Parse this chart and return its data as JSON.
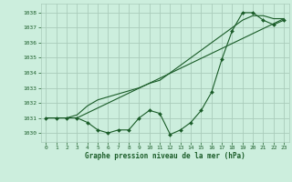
{
  "title": "Graphe pression niveau de la mer (hPa)",
  "background_color": "#cceedd",
  "grid_color": "#aaccbb",
  "line_color": "#1a5c28",
  "text_color": "#1a5c28",
  "ylim": [
    1029.4,
    1038.6
  ],
  "xlim": [
    -0.5,
    23.5
  ],
  "yticks": [
    1030,
    1031,
    1032,
    1033,
    1034,
    1035,
    1036,
    1037,
    1038
  ],
  "xticks": [
    0,
    1,
    2,
    3,
    4,
    5,
    6,
    7,
    8,
    9,
    10,
    11,
    12,
    13,
    14,
    15,
    16,
    17,
    18,
    19,
    20,
    21,
    22,
    23
  ],
  "series1_x": [
    0,
    1,
    2,
    3,
    4,
    5,
    6,
    7,
    8,
    9,
    10,
    11,
    12,
    13,
    14,
    15,
    16,
    17,
    18,
    19,
    20,
    21,
    22,
    23
  ],
  "series1_y": [
    1031.0,
    1031.0,
    1031.0,
    1031.0,
    1030.7,
    1030.2,
    1030.0,
    1030.2,
    1030.2,
    1031.0,
    1031.5,
    1031.3,
    1029.9,
    1030.2,
    1030.7,
    1031.5,
    1032.7,
    1034.9,
    1036.8,
    1038.0,
    1038.0,
    1037.5,
    1037.2,
    1037.5
  ],
  "series2_x": [
    0,
    1,
    2,
    3,
    4,
    5,
    6,
    7,
    8,
    9,
    10,
    11,
    12,
    13,
    14,
    15,
    16,
    17,
    18,
    19,
    20,
    21,
    22,
    23
  ],
  "series2_y": [
    1031.0,
    1031.0,
    1031.0,
    1031.2,
    1031.8,
    1032.2,
    1032.4,
    1032.6,
    1032.8,
    1033.0,
    1033.3,
    1033.5,
    1034.0,
    1034.5,
    1035.0,
    1035.5,
    1036.0,
    1036.5,
    1037.0,
    1037.5,
    1037.8,
    1037.8,
    1037.6,
    1037.6
  ],
  "series3_x": [
    3,
    23
  ],
  "series3_y": [
    1031.0,
    1037.6
  ]
}
